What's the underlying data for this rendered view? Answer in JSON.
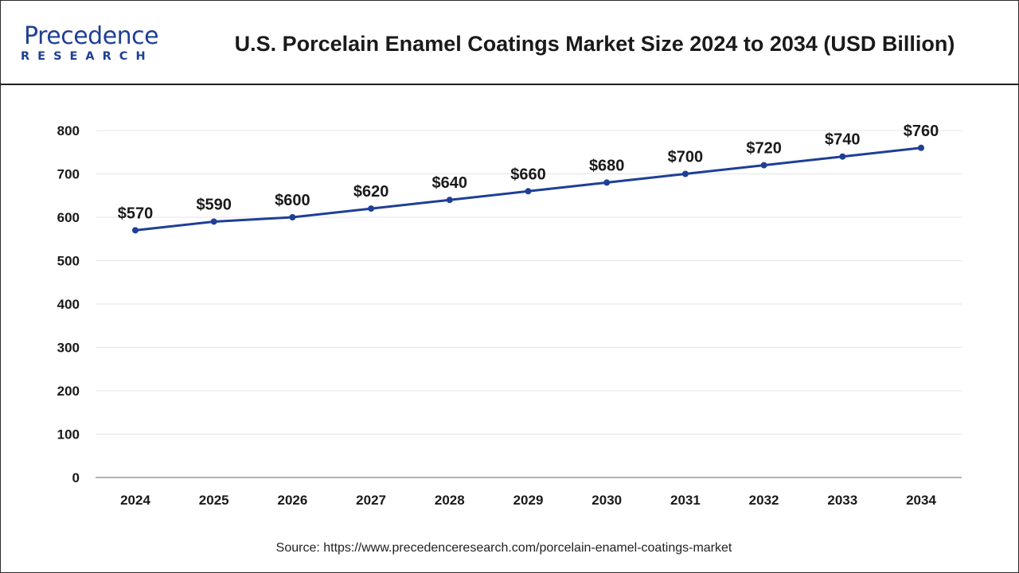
{
  "header": {
    "logo_text": "Precedence",
    "logo_sub": "RESEARCH",
    "title": "U.S. Porcelain Enamel Coatings Market Size 2024 to 2034 (USD Billion)"
  },
  "footer": {
    "source": "Source: https://www.precedenceresearch.com/porcelain-enamel-coatings-market"
  },
  "colors": {
    "line": "#1f3f95",
    "brand": "#1f3f95",
    "grid": "#e4e4e4",
    "axis": "#9a9a9a",
    "text": "#1a1a1a"
  },
  "chart_data": {
    "type": "line",
    "categories": [
      "2024",
      "2025",
      "2026",
      "2027",
      "2028",
      "2029",
      "2030",
      "2031",
      "2032",
      "2033",
      "2034"
    ],
    "series": [
      {
        "values": [
          570,
          590,
          600,
          620,
          640,
          660,
          680,
          700,
          720,
          740,
          760
        ]
      }
    ],
    "data_labels": [
      "$570",
      "$590",
      "$600",
      "$620",
      "$640",
      "$660",
      "$680",
      "$700",
      "$720",
      "$740",
      "$760"
    ],
    "yticks": [
      0,
      100,
      200,
      300,
      400,
      500,
      600,
      700,
      800
    ],
    "ylim": [
      0,
      800
    ],
    "grid": true,
    "legend": "none",
    "markers": true
  }
}
